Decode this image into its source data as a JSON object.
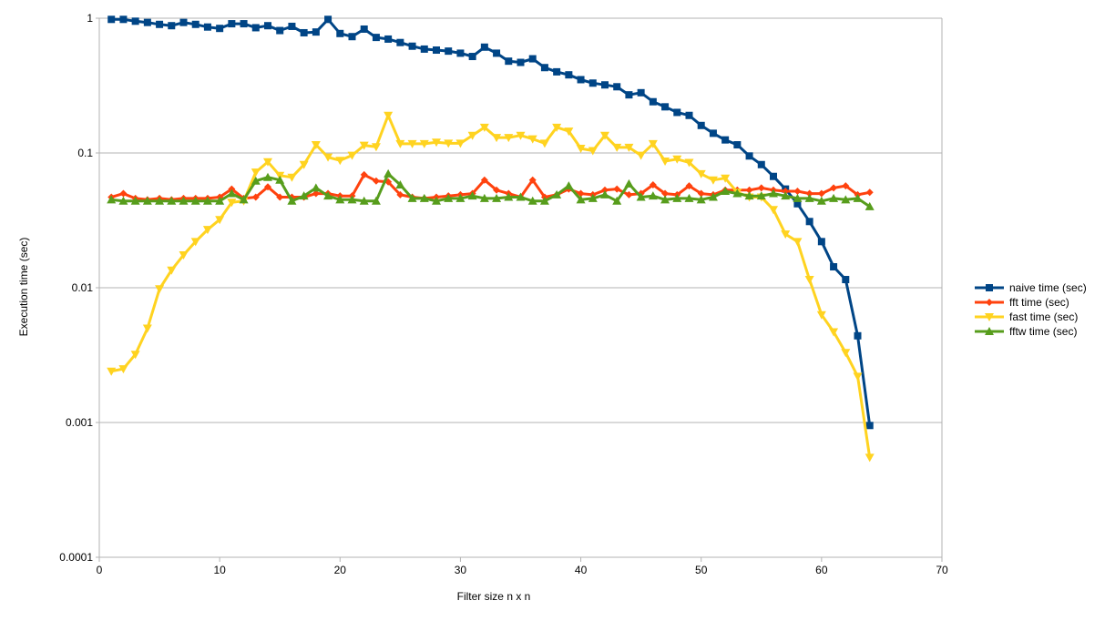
{
  "chart_data": {
    "type": "line",
    "title": "",
    "xlabel": "Filter size n x n",
    "ylabel": "Execution time (sec)",
    "xlim": [
      0,
      70
    ],
    "xticks": [
      0,
      10,
      20,
      30,
      40,
      50,
      60,
      70
    ],
    "xtick_labels": [
      "0",
      "10",
      "20",
      "30",
      "40",
      "50",
      "60",
      "70"
    ],
    "yscale": "log",
    "ylim": [
      0.0001,
      1
    ],
    "yticks": [
      0.0001,
      0.001,
      0.01,
      0.1,
      1
    ],
    "ytick_labels": [
      "0.0001",
      "0.001",
      "0.01",
      "0.1",
      "1"
    ],
    "grid": "horizontal",
    "legend_position": "right",
    "x": [
      1,
      2,
      3,
      4,
      5,
      6,
      7,
      8,
      9,
      10,
      11,
      12,
      13,
      14,
      15,
      16,
      17,
      18,
      19,
      20,
      21,
      22,
      23,
      24,
      25,
      26,
      27,
      28,
      29,
      30,
      31,
      32,
      33,
      34,
      35,
      36,
      37,
      38,
      39,
      40,
      41,
      42,
      43,
      44,
      45,
      46,
      47,
      48,
      49,
      50,
      51,
      52,
      53,
      54,
      55,
      56,
      57,
      58,
      59,
      60,
      61,
      62,
      63,
      64
    ],
    "series": [
      {
        "name": "naive time (sec)",
        "color": "#004586",
        "marker": "square",
        "values": [
          0.98,
          0.98,
          0.95,
          0.93,
          0.9,
          0.88,
          0.93,
          0.9,
          0.86,
          0.84,
          0.91,
          0.91,
          0.85,
          0.88,
          0.81,
          0.87,
          0.78,
          0.79,
          0.98,
          0.77,
          0.73,
          0.83,
          0.72,
          0.7,
          0.66,
          0.62,
          0.59,
          0.58,
          0.57,
          0.55,
          0.52,
          0.61,
          0.55,
          0.48,
          0.47,
          0.5,
          0.43,
          0.4,
          0.38,
          0.35,
          0.33,
          0.32,
          0.31,
          0.27,
          0.28,
          0.24,
          0.22,
          0.2,
          0.19,
          0.16,
          0.14,
          0.125,
          0.115,
          0.095,
          0.082,
          0.067,
          0.054,
          0.042,
          0.031,
          0.022,
          0.0143,
          0.0115,
          0.0044,
          0.00095
        ]
      },
      {
        "name": "fft time (sec)",
        "color": "#ff420e",
        "marker": "diamond",
        "values": [
          0.047,
          0.05,
          0.046,
          0.045,
          0.046,
          0.045,
          0.046,
          0.046,
          0.046,
          0.047,
          0.054,
          0.046,
          0.047,
          0.056,
          0.047,
          0.047,
          0.047,
          0.05,
          0.05,
          0.048,
          0.048,
          0.069,
          0.062,
          0.061,
          0.049,
          0.047,
          0.046,
          0.047,
          0.048,
          0.049,
          0.05,
          0.063,
          0.053,
          0.05,
          0.047,
          0.063,
          0.047,
          0.049,
          0.054,
          0.05,
          0.049,
          0.053,
          0.054,
          0.049,
          0.05,
          0.058,
          0.05,
          0.049,
          0.057,
          0.05,
          0.049,
          0.053,
          0.053,
          0.053,
          0.055,
          0.053,
          0.052,
          0.052,
          0.05,
          0.05,
          0.055,
          0.057,
          0.049,
          0.051
        ]
      },
      {
        "name": "fast time (sec)",
        "color": "#ffd320",
        "marker": "triangle-down",
        "values": [
          0.0024,
          0.0025,
          0.0032,
          0.005,
          0.0098,
          0.0135,
          0.0175,
          0.022,
          0.027,
          0.032,
          0.043,
          0.044,
          0.072,
          0.086,
          0.068,
          0.066,
          0.082,
          0.115,
          0.093,
          0.088,
          0.096,
          0.114,
          0.111,
          0.19,
          0.117,
          0.117,
          0.117,
          0.12,
          0.118,
          0.118,
          0.135,
          0.155,
          0.13,
          0.13,
          0.135,
          0.127,
          0.118,
          0.155,
          0.145,
          0.108,
          0.104,
          0.135,
          0.11,
          0.11,
          0.096,
          0.117,
          0.087,
          0.09,
          0.085,
          0.07,
          0.063,
          0.065,
          0.051,
          0.047,
          0.047,
          0.038,
          0.025,
          0.022,
          0.0115,
          0.0063,
          0.0047,
          0.0033,
          0.0022,
          0.00055
        ]
      },
      {
        "name": "fftw time (sec)",
        "color": "#579d1c",
        "marker": "triangle-up",
        "values": [
          0.045,
          0.044,
          0.044,
          0.044,
          0.044,
          0.044,
          0.044,
          0.044,
          0.044,
          0.044,
          0.05,
          0.045,
          0.062,
          0.066,
          0.063,
          0.044,
          0.048,
          0.055,
          0.048,
          0.045,
          0.045,
          0.044,
          0.044,
          0.07,
          0.058,
          0.046,
          0.046,
          0.044,
          0.046,
          0.046,
          0.048,
          0.046,
          0.046,
          0.047,
          0.047,
          0.044,
          0.044,
          0.049,
          0.057,
          0.045,
          0.046,
          0.049,
          0.044,
          0.059,
          0.047,
          0.048,
          0.045,
          0.046,
          0.046,
          0.045,
          0.047,
          0.052,
          0.05,
          0.048,
          0.048,
          0.05,
          0.048,
          0.046,
          0.046,
          0.044,
          0.046,
          0.045,
          0.046,
          0.04
        ]
      }
    ]
  }
}
